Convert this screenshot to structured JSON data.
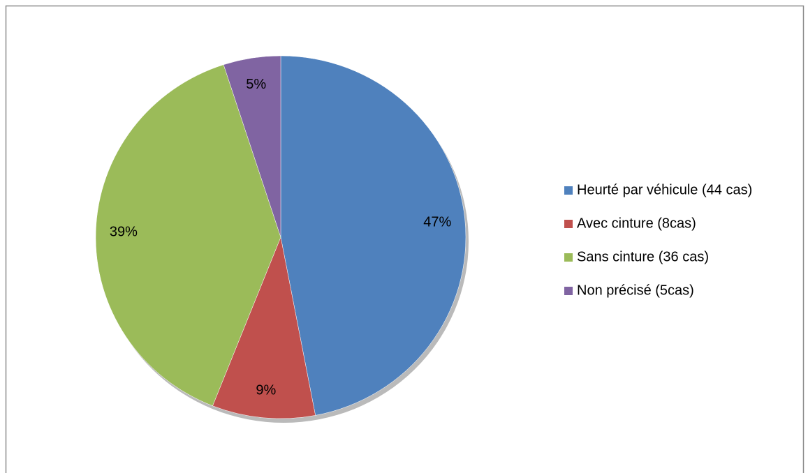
{
  "chart_data": {
    "type": "pie",
    "categories": [
      "Heurté par véhicule (44 cas)",
      "Avec cinture (8cas)",
      "Sans cinture (36 cas)",
      "Non précisé (5cas)"
    ],
    "values": [
      47,
      9,
      39,
      5
    ],
    "value_labels": [
      "47%",
      "9%",
      "39%",
      "5%"
    ],
    "colors": [
      "#4f81bd",
      "#c0504d",
      "#9bbb59",
      "#8064a2"
    ],
    "legend": "right"
  }
}
